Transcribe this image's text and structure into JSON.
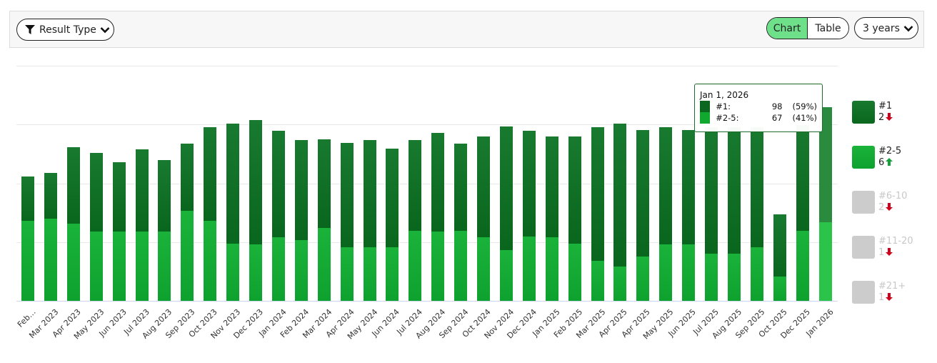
{
  "toolbar": {
    "result_type_label": "Result Type",
    "view_options": [
      {
        "label": "Chart",
        "active": true
      },
      {
        "label": "Table",
        "active": false
      }
    ],
    "range_label": "3 years"
  },
  "tooltip": {
    "title": "Jan 1, 2026",
    "rows": [
      {
        "name": "#1:",
        "value": "98",
        "pct": "(59%)",
        "color": "#0b6620"
      },
      {
        "name": "#2-5:",
        "value": "67",
        "pct": "(41%)",
        "color": "#10a82f"
      }
    ]
  },
  "legend": [
    {
      "label": "#1",
      "change": "2",
      "direction": "down",
      "color": "#0c6a22",
      "enabled": true
    },
    {
      "label": "#2-5",
      "change": "6",
      "direction": "up",
      "color": "#14ad36",
      "enabled": true
    },
    {
      "label": "#6-10",
      "change": "2",
      "direction": "down",
      "color": "#cccccc",
      "enabled": false
    },
    {
      "label": "#11-20",
      "change": "1",
      "direction": "down",
      "color": "#cccccc",
      "enabled": false
    },
    {
      "label": "#21+",
      "change": "1",
      "direction": "down",
      "color": "#cccccc",
      "enabled": false
    }
  ],
  "colors": {
    "series_1": "#0c6a22",
    "series_2_5": "#14ad36",
    "arrow_down": "#d0021b",
    "arrow_up": "#14a03a",
    "toggle_active": "#6ee08a"
  },
  "chart_data": {
    "type": "bar",
    "stacked": true,
    "title": "",
    "xlabel": "",
    "ylabel": "",
    "ylim": [
      0,
      200
    ],
    "yticks": [
      0,
      50,
      100,
      150,
      200
    ],
    "grid": true,
    "legend_position": "right",
    "categories": [
      "Feb…",
      "Mar 2023",
      "Apr 2023",
      "May 2023",
      "Jun 2023",
      "Jul 2023",
      "Aug 2023",
      "Sep 2023",
      "Oct 2023",
      "Nov 2023",
      "Dec 2023",
      "Jan 2024",
      "Feb 2024",
      "Mar 2024",
      "Apr 2024",
      "May 2024",
      "Jun 2024",
      "Jul 2024",
      "Aug 2024",
      "Sep 2024",
      "Oct 2024",
      "Nov 2024",
      "Dec 2024",
      "Jan 2025",
      "Feb 2025",
      "Mar 2025",
      "Apr 2025",
      "Apr 2025",
      "May 2025",
      "Jun 2025",
      "Jul 2025",
      "Aug 2025",
      "Sep 2025",
      "Oct 2025",
      "Dec 2025",
      "Jan 2026"
    ],
    "series": [
      {
        "name": "#2-5",
        "color": "#14ad36",
        "values": [
          68,
          70,
          66,
          59,
          59,
          59,
          59,
          77,
          68,
          49,
          48,
          54,
          52,
          62,
          46,
          46,
          46,
          60,
          59,
          60,
          54,
          43,
          55,
          54,
          49,
          34,
          29,
          38,
          48,
          48,
          40,
          40,
          46,
          21,
          60,
          67
        ]
      },
      {
        "name": "#1",
        "color": "#0c6a22",
        "values": [
          38,
          39,
          65,
          67,
          59,
          70,
          61,
          57,
          80,
          102,
          106,
          91,
          85,
          76,
          89,
          91,
          84,
          77,
          84,
          74,
          86,
          106,
          90,
          86,
          91,
          114,
          122,
          108,
          100,
          98,
          108,
          108,
          102,
          53,
          90,
          98
        ]
      }
    ],
    "highlighted_index": 35
  }
}
